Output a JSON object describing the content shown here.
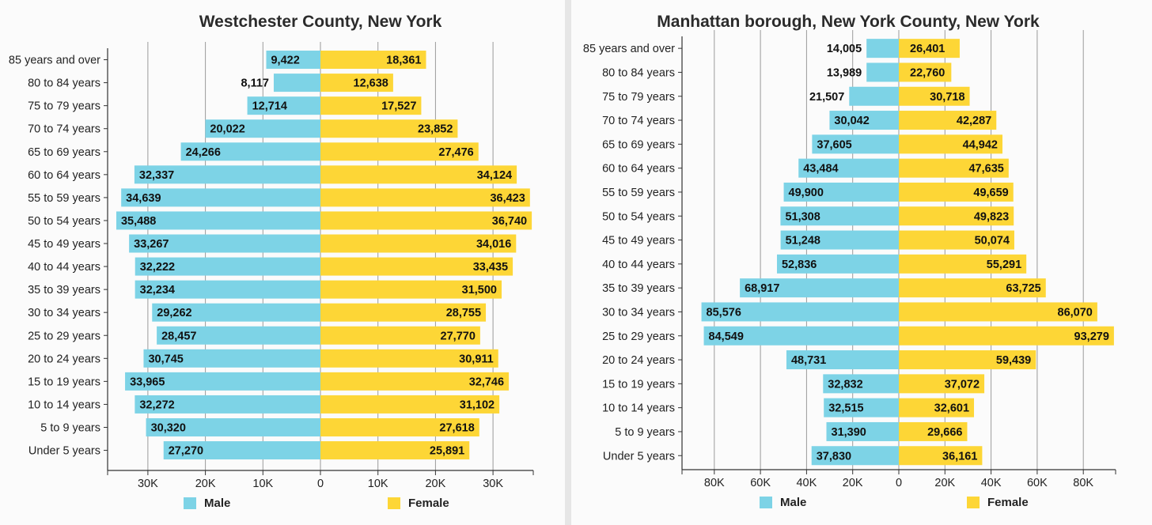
{
  "chart_data": [
    {
      "type": "bar",
      "orientation": "horizontal-population-pyramid",
      "title": "Westchester County, New York",
      "categories": [
        "85 years and over",
        "80 to 84 years",
        "75 to 79 years",
        "70 to 74 years",
        "65 to 69 years",
        "60 to 64 years",
        "55 to 59 years",
        "50 to 54 years",
        "45 to 49 years",
        "40 to 44 years",
        "35 to 39 years",
        "30 to 34 years",
        "25 to 29 years",
        "20 to 24 years",
        "15 to 19 years",
        "10 to 14 years",
        "5 to 9 years",
        "Under 5 years"
      ],
      "series": [
        {
          "name": "Male",
          "color": "#7dd3e6",
          "values": [
            9422,
            8117,
            12714,
            20022,
            24266,
            32337,
            34639,
            35488,
            33267,
            32222,
            32234,
            29262,
            28457,
            30745,
            33965,
            32272,
            30320,
            27270
          ]
        },
        {
          "name": "Female",
          "color": "#fdd636",
          "values": [
            18361,
            12638,
            17527,
            23852,
            27476,
            34124,
            36423,
            36740,
            34016,
            33435,
            31500,
            28755,
            27770,
            30911,
            32746,
            31102,
            27618,
            25891
          ]
        }
      ],
      "xlim": [
        -37000,
        37000
      ],
      "ticks": [
        -30000,
        -20000,
        -10000,
        0,
        10000,
        20000,
        30000
      ],
      "tick_labels": [
        "30K",
        "20K",
        "10K",
        "0",
        "10K",
        "20K",
        "30K"
      ],
      "grid": true,
      "legend": "bottom"
    },
    {
      "type": "bar",
      "orientation": "horizontal-population-pyramid",
      "title": "Manhattan borough, New York County, New York",
      "categories": [
        "85 years and over",
        "80 to 84 years",
        "75 to 79 years",
        "70 to 74 years",
        "65 to 69 years",
        "60 to 64 years",
        "55 to 59 years",
        "50 to 54 years",
        "45 to 49 years",
        "40 to 44 years",
        "35 to 39 years",
        "30 to 34 years",
        "25 to 29 years",
        "20 to 24 years",
        "15 to 19 years",
        "10 to 14 years",
        "5 to 9 years",
        "Under 5 years"
      ],
      "series": [
        {
          "name": "Male",
          "color": "#7dd3e6",
          "values": [
            14005,
            13989,
            21507,
            30042,
            37605,
            43484,
            49900,
            51308,
            51248,
            52836,
            68917,
            85576,
            84549,
            48731,
            32832,
            32515,
            31390,
            37830
          ]
        },
        {
          "name": "Female",
          "color": "#fdd636",
          "values": [
            26401,
            22760,
            30718,
            42287,
            44942,
            47635,
            49659,
            49823,
            50074,
            55291,
            63725,
            86070,
            93279,
            59439,
            37072,
            32601,
            29666,
            36161
          ]
        }
      ],
      "xlim": [
        -94000,
        94000
      ],
      "ticks": [
        -80000,
        -60000,
        -40000,
        -20000,
        0,
        20000,
        40000,
        60000,
        80000
      ],
      "tick_labels": [
        "80K",
        "60K",
        "40K",
        "20K",
        "0",
        "20K",
        "40K",
        "60K",
        "80K"
      ],
      "grid": true,
      "legend": "bottom"
    }
  ]
}
